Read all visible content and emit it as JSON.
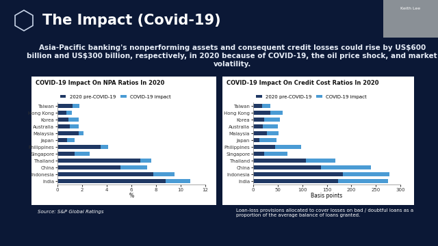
{
  "slide": {
    "title": "The Impact (Covid-19)",
    "text": "Asia-Pacific banking's nonperforming assets and consequent credit losses could rise by US$600 billion and US$300 billion, respectively, in 2020 because of COVID-19, the oil price shock, and market volatility.",
    "source": "Source: S&P Global Ratings",
    "note": "Loan-loss provisions allocated to cover losses on bad / doubtful loans as a proportion of the average balance of loans granted.",
    "speaker": "Keith Lee"
  },
  "chart_data": [
    {
      "type": "bar",
      "title": "COVID-19 Impact On NPA Ratios In 2020",
      "orientation": "horizontal",
      "stacked": true,
      "grid": false,
      "legend": "lower left",
      "categories": [
        "Taiwan",
        "Hong Kong",
        "Korea",
        "Australia",
        "Malaysia",
        "Japan",
        "Philippines",
        "Singapore",
        "Thailand",
        "China",
        "Indonesia",
        "India"
      ],
      "series": [
        {
          "name": "2020 pre-COVID-19",
          "color": "#1f3864",
          "values": [
            1.2,
            0.7,
            0.9,
            1.0,
            1.7,
            0.8,
            3.5,
            1.4,
            6.7,
            5.1,
            7.8,
            8.8
          ]
        },
        {
          "name": "COVID-19 impact",
          "color": "#4a9bd4",
          "values": [
            0.55,
            0.45,
            0.8,
            0.7,
            0.4,
            0.6,
            0.6,
            1.2,
            0.9,
            2.2,
            1.7,
            2.0
          ]
        }
      ],
      "xlabel": "%",
      "xlim": [
        0,
        12
      ],
      "xticks": [
        0,
        2,
        4,
        6,
        8,
        10,
        12
      ]
    },
    {
      "type": "bar",
      "title": "COVID-19 Impact On Credit Cost Ratios In 2020",
      "orientation": "horizontal",
      "stacked": true,
      "grid": false,
      "legend": "lower left",
      "categories": [
        "Taiwan",
        "Hong Kong",
        "Korea",
        "Australia",
        "Malaysia",
        "Japan",
        "Philippines",
        "Singapore",
        "Thailand",
        "China",
        "Indonesia",
        "India"
      ],
      "series": [
        {
          "name": "2020 pre-COVID-19",
          "color": "#1f3864",
          "values": [
            18,
            35,
            23,
            20,
            28,
            12,
            45,
            23,
            108,
            138,
            183,
            173
          ]
        },
        {
          "name": "COVID-19 impact",
          "color": "#4a9bd4",
          "values": [
            17,
            25,
            32,
            30,
            24,
            36,
            52,
            47,
            60,
            102,
            95,
            102
          ]
        }
      ],
      "xlabel": "Basis points",
      "xlim": [
        0,
        300
      ],
      "xticks": [
        0,
        50,
        100,
        150,
        200,
        250,
        300
      ]
    }
  ]
}
